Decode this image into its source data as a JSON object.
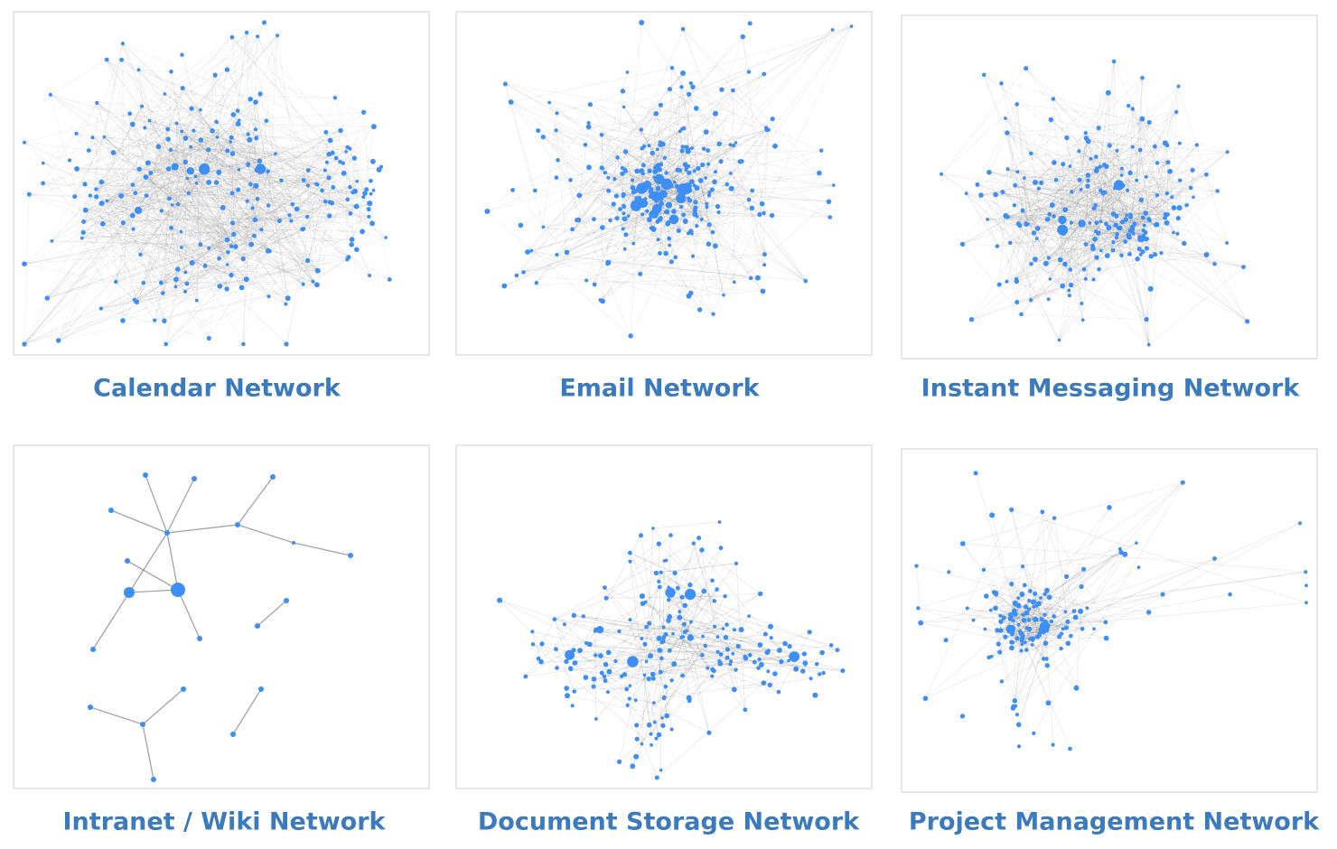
{
  "panels": [
    {
      "caption": "Calendar Network"
    },
    {
      "caption": "Email Network"
    },
    {
      "caption": "Instant Messaging Network"
    },
    {
      "caption": "Intranet / Wiki Network"
    },
    {
      "caption": "Document Storage Network"
    },
    {
      "caption": "Project Management Network"
    }
  ]
}
